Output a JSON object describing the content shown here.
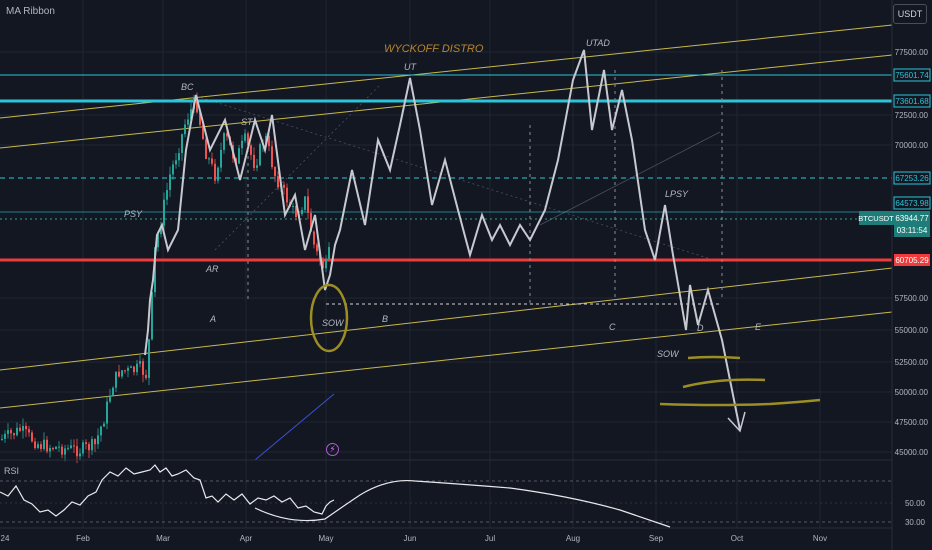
{
  "header": {
    "indicator": "MA Ribbon",
    "currency": "USDT",
    "rsi_label": "RSI"
  },
  "annotations": {
    "title": "WYCKOFF DISTRO",
    "bc": "BC",
    "st": "ST",
    "psy": "PSY",
    "ar": "AR",
    "sow1": "SOW",
    "ut": "UT",
    "utad": "UTAD",
    "lpsy": "LPSY",
    "sow2": "SOW",
    "phase_a": "A",
    "phase_b": "B",
    "phase_c": "C",
    "phase_d": "D",
    "phase_e": "E"
  },
  "price_axis": {
    "ticks": [
      "77500.00",
      "72500.00",
      "70000.00",
      "57500.00",
      "55000.00",
      "52500.00",
      "50000.00",
      "47500.00",
      "45000.00"
    ],
    "rsi_ticks": [
      "50.00",
      "30.00"
    ]
  },
  "time_axis": {
    "labels": [
      "24",
      "Feb",
      "Mar",
      "Apr",
      "May",
      "Jun",
      "Jul",
      "Aug",
      "Sep",
      "Oct",
      "Nov"
    ]
  },
  "price_tags": {
    "tag1": "75601.74",
    "tag2": "73601.68",
    "tag3": "67253.26",
    "tag4": "64573.98",
    "symbol": "BTCUSDT",
    "current": "63944.77",
    "countdown": "03:11:54",
    "tag5": "60705.29"
  },
  "colors": {
    "background": "#131722",
    "grid": "#1f2430",
    "cyan": "#2bc4d8",
    "red": "#ef3b3b",
    "yellow": "#c9b949",
    "olive": "#9c8e24",
    "path": "#c7c9d0",
    "candle_up": "#26a69a",
    "candle_down": "#ef5350",
    "label": "#b5b8c2",
    "title": "#b8862e",
    "blue": "#3a50d8",
    "teal_tag": "#1e7d79"
  }
}
